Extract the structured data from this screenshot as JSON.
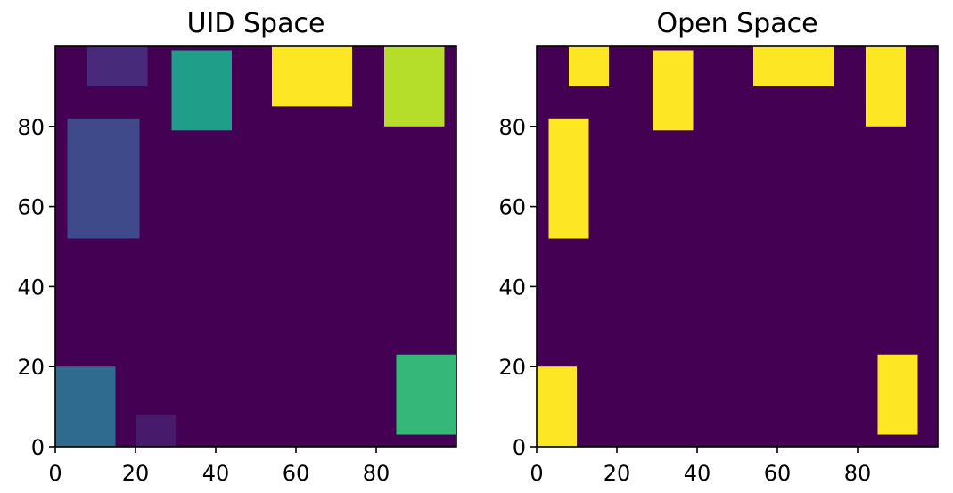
{
  "chart_data": [
    {
      "type": "heatmap",
      "title": "UID Space",
      "xlim": [
        0,
        100
      ],
      "ylim": [
        0,
        100
      ],
      "xticks": [
        "0",
        "20",
        "40",
        "60",
        "80"
      ],
      "yticks": [
        "0",
        "20",
        "40",
        "60",
        "80"
      ],
      "xtick_values": [
        0,
        20,
        40,
        60,
        80
      ],
      "ytick_values": [
        0,
        20,
        40,
        60,
        80
      ],
      "background_color": "#440154",
      "grid": false,
      "rects": [
        {
          "x0": 0,
          "x1": 15,
          "y0": 0,
          "y1": 20,
          "color": "#2f6b8e"
        },
        {
          "x0": 20,
          "x1": 30,
          "y0": 0,
          "y1": 8,
          "color": "#481a6c"
        },
        {
          "x0": 3,
          "x1": 21,
          "y0": 52,
          "y1": 82,
          "color": "#3e4a89"
        },
        {
          "x0": 8,
          "x1": 23,
          "y0": 90,
          "y1": 100,
          "color": "#472a7a"
        },
        {
          "x0": 29,
          "x1": 44,
          "y0": 79,
          "y1": 99,
          "color": "#1f9e89"
        },
        {
          "x0": 54,
          "x1": 74,
          "y0": 85,
          "y1": 100,
          "color": "#fde725"
        },
        {
          "x0": 82,
          "x1": 97,
          "y0": 80,
          "y1": 100,
          "color": "#b5de2b"
        },
        {
          "x0": 85,
          "x1": 100,
          "y0": 3,
          "y1": 23,
          "color": "#35b779"
        }
      ]
    },
    {
      "type": "heatmap",
      "title": "Open Space",
      "xlim": [
        0,
        100
      ],
      "ylim": [
        0,
        100
      ],
      "xticks": [
        "0",
        "20",
        "40",
        "60",
        "80"
      ],
      "yticks": [
        "0",
        "20",
        "40",
        "60",
        "80"
      ],
      "xtick_values": [
        0,
        20,
        40,
        60,
        80
      ],
      "ytick_values": [
        0,
        20,
        40,
        60,
        80
      ],
      "background_color": "#440154",
      "grid": false,
      "rects": [
        {
          "x0": 0,
          "x1": 10,
          "y0": 0,
          "y1": 20,
          "color": "#fde725"
        },
        {
          "x0": 3,
          "x1": 13,
          "y0": 52,
          "y1": 82,
          "color": "#fde725"
        },
        {
          "x0": 8,
          "x1": 18,
          "y0": 90,
          "y1": 100,
          "color": "#fde725"
        },
        {
          "x0": 29,
          "x1": 39,
          "y0": 79,
          "y1": 99,
          "color": "#fde725"
        },
        {
          "x0": 54,
          "x1": 74,
          "y0": 90,
          "y1": 100,
          "color": "#fde725"
        },
        {
          "x0": 82,
          "x1": 92,
          "y0": 80,
          "y1": 100,
          "color": "#fde725"
        },
        {
          "x0": 85,
          "x1": 95,
          "y0": 3,
          "y1": 23,
          "color": "#fde725"
        }
      ]
    }
  ]
}
